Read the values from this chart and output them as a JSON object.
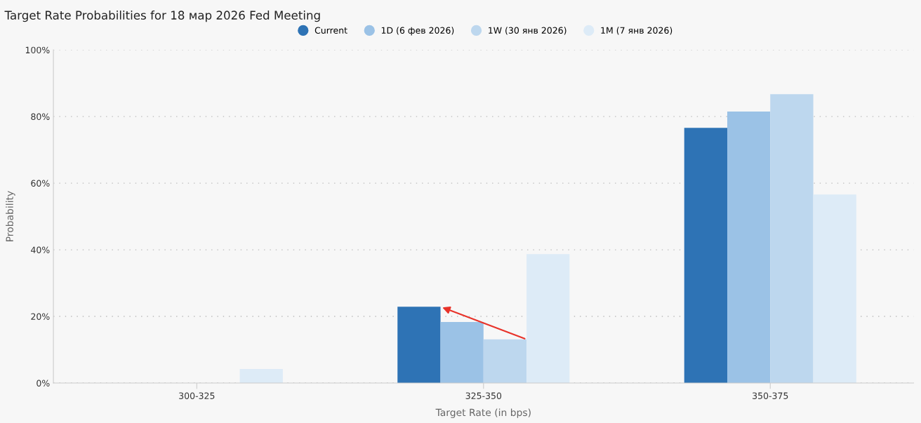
{
  "chart_data": {
    "type": "bar",
    "title": "Target Rate Probabilities for 18 мар 2026 Fed Meeting",
    "xlabel": "Target Rate (in bps)",
    "ylabel": "Probability",
    "categories": [
      "300-325",
      "325-350",
      "350-375"
    ],
    "series": [
      {
        "name": "Current",
        "color": "#2e73b5",
        "values": [
          0,
          22.9,
          76.6
        ]
      },
      {
        "name": "1D (6 фев 2026)",
        "color": "#9bc2e6",
        "values": [
          0,
          18.3,
          81.5
        ]
      },
      {
        "name": "1W (30 янв 2026)",
        "color": "#bdd7ee",
        "values": [
          0,
          13.1,
          86.7
        ]
      },
      {
        "name": "1M (7 янв 2026)",
        "color": "#ddebf7",
        "values": [
          4.2,
          38.7,
          56.6
        ]
      }
    ],
    "ylim": [
      0,
      100
    ],
    "yticks": [
      {
        "value": 0,
        "label": "0%"
      },
      {
        "value": 20,
        "label": "20%"
      },
      {
        "value": 40,
        "label": "40%"
      },
      {
        "value": 60,
        "label": "60%"
      },
      {
        "value": 80,
        "label": "80%"
      },
      {
        "value": 100,
        "label": "100%"
      }
    ],
    "grid": "y",
    "legend": "top",
    "marker": "circle"
  }
}
